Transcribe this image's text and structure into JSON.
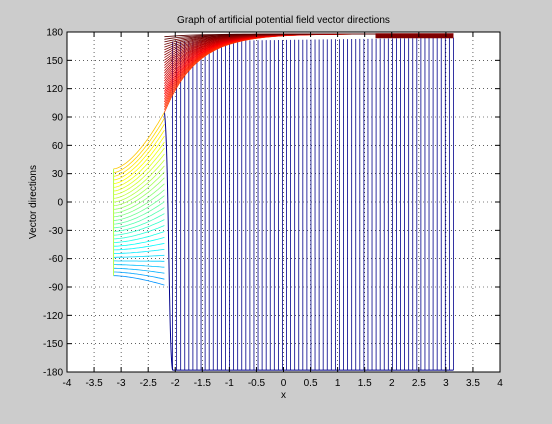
{
  "chart_data": {
    "type": "line",
    "title": "Graph of artificial potential field vector directions",
    "xlabel": "x",
    "ylabel": "Vector directions",
    "xlim": [
      -4,
      4
    ],
    "ylim": [
      -180,
      180
    ],
    "xticks": [
      -4,
      -3.5,
      -3,
      -2.5,
      -2,
      -1.5,
      -1,
      -0.5,
      0,
      0.5,
      1,
      1.5,
      2,
      2.5,
      3,
      3.5,
      4
    ],
    "xtick_labels": [
      "-4",
      "-3.5",
      "-3",
      "-2.5",
      "-2",
      "-1.5",
      "-1",
      "-0.5",
      "0",
      "0.5",
      "1",
      "1.5",
      "2",
      "2.5",
      "3",
      "3.5",
      "4"
    ],
    "yticks": [
      -180,
      -150,
      -120,
      -90,
      -60,
      -30,
      0,
      30,
      60,
      90,
      120,
      150,
      180
    ],
    "ytick_labels": [
      "-180",
      "-150",
      "-120",
      "-90",
      "-60",
      "-30",
      "0",
      "30",
      "60",
      "90",
      "120",
      "150",
      "180"
    ],
    "grid": true,
    "grid_style": "dotted",
    "colormap": "jet",
    "background_color": "#cccccc",
    "plot_background_color": "#ffffff",
    "series_description_x_range": [
      -3.14,
      3.14
    ],
    "families": {
      "left_fan": {
        "x_range": [
          -3.14,
          -2.2
        ],
        "y_start_range": [
          -78,
          35
        ],
        "y_end_range": [
          -88,
          95
        ],
        "color_range": [
          "#00c8ff",
          "#ffff00"
        ]
      },
      "top_fan": {
        "x_range": [
          -2.2,
          3.14
        ],
        "y_start_range": [
          95,
          175
        ],
        "y_end": 178,
        "color_range": [
          "#ff8000",
          "#800000"
        ]
      },
      "vertical_lines": {
        "x_range": [
          -2.05,
          3.14
        ],
        "y_range": [
          -178,
          170
        ],
        "color": "#00008b"
      }
    }
  }
}
